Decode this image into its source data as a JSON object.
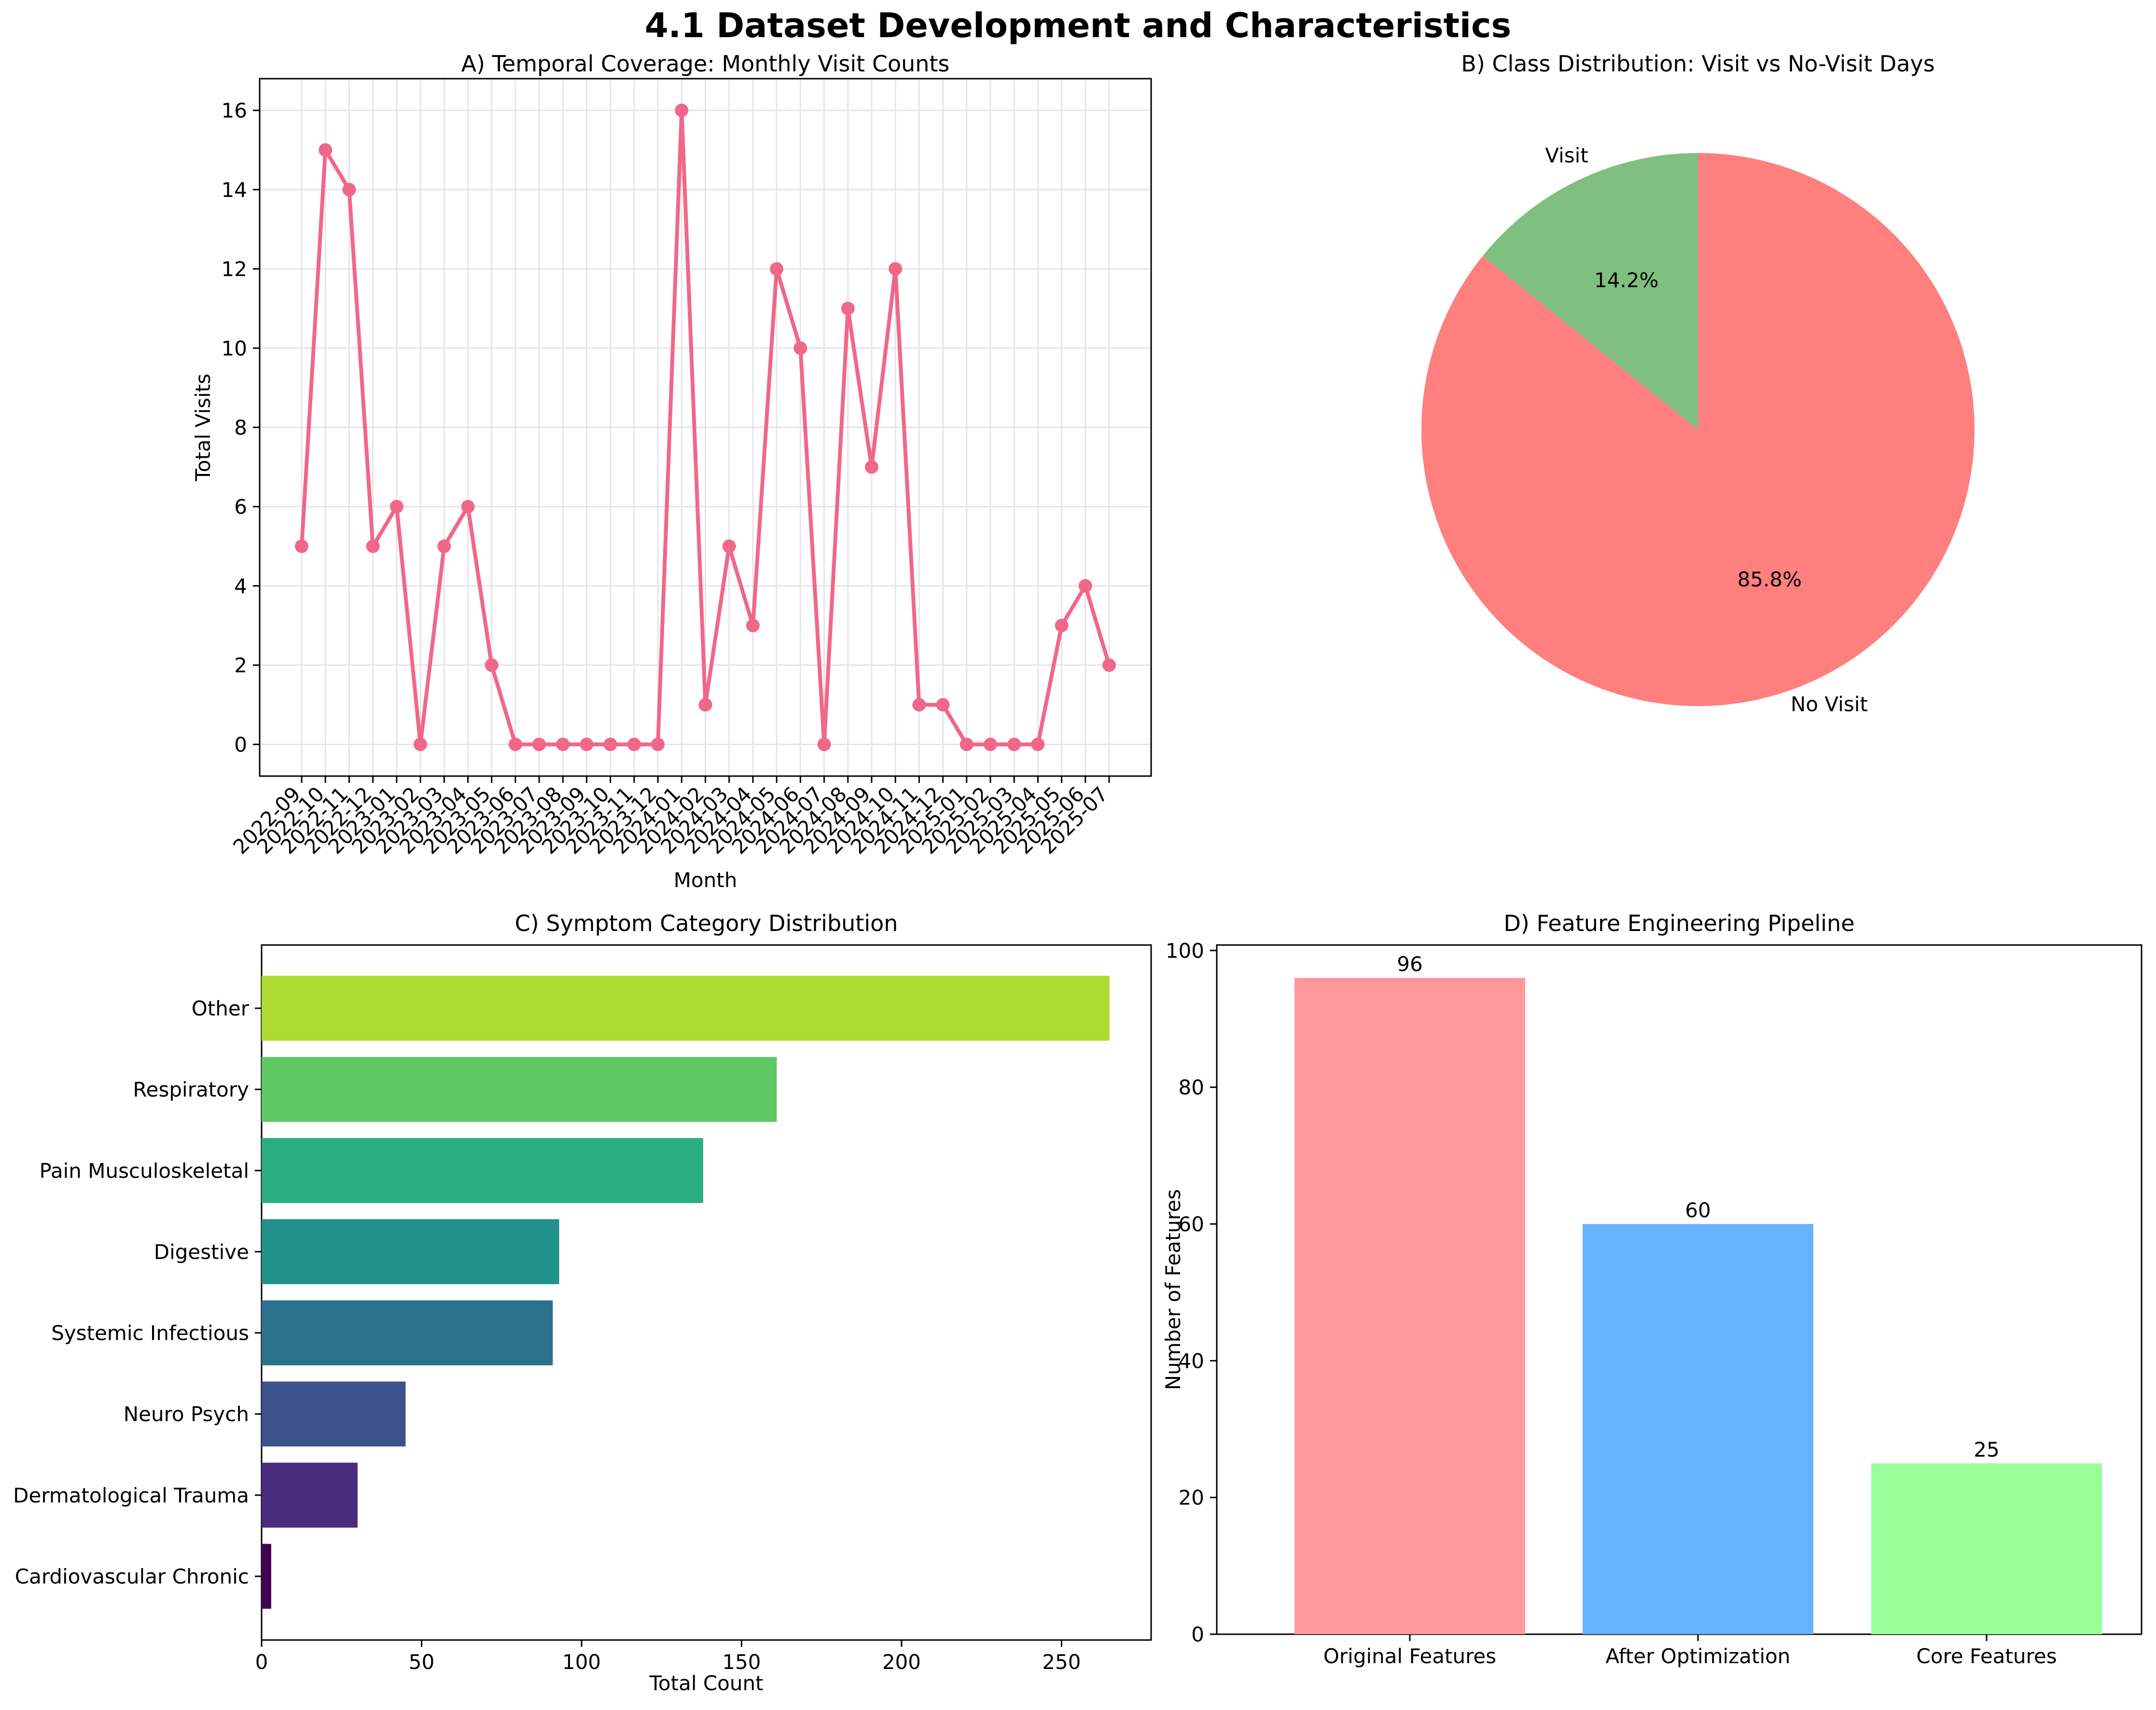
{
  "figure": {
    "suptitle": "4.1 Dataset Development and Characteristics"
  },
  "chart_data": [
    {
      "id": "A",
      "type": "line",
      "title": "A) Temporal Coverage: Monthly Visit Counts",
      "xlabel": "Month",
      "ylabel": "Total Visits",
      "categories": [
        "2022-09",
        "2022-10",
        "2022-11",
        "2022-12",
        "2023-01",
        "2023-02",
        "2023-03",
        "2023-04",
        "2023-05",
        "2023-06",
        "2023-07",
        "2023-08",
        "2023-09",
        "2023-10",
        "2023-11",
        "2023-12",
        "2024-01",
        "2024-02",
        "2024-03",
        "2024-04",
        "2024-05",
        "2024-06",
        "2024-07",
        "2024-08",
        "2024-09",
        "2024-10",
        "2024-11",
        "2024-12",
        "2025-01",
        "2025-02",
        "2025-03",
        "2025-04",
        "2025-05",
        "2025-06",
        "2025-07"
      ],
      "values": [
        5,
        15,
        14,
        5,
        6,
        0,
        5,
        6,
        2,
        0,
        0,
        0,
        0,
        0,
        0,
        0,
        16,
        1,
        5,
        3,
        12,
        10,
        0,
        11,
        7,
        12,
        1,
        1,
        0,
        0,
        0,
        0,
        3,
        4,
        2
      ],
      "ylim": [
        -0.8,
        16.8
      ],
      "yticks": [
        0,
        2,
        4,
        6,
        8,
        10,
        12,
        14,
        16
      ],
      "grid": true,
      "color": "#f0678a"
    },
    {
      "id": "B",
      "type": "pie",
      "title": "B) Class Distribution: Visit vs No-Visit Days",
      "slices": [
        {
          "label": "Visit",
          "value": 14.2,
          "pct_label": "14.2%",
          "color": "#7fbf7f"
        },
        {
          "label": "No Visit",
          "value": 85.8,
          "pct_label": "85.8%",
          "color": "#ff7f7f"
        }
      ]
    },
    {
      "id": "C",
      "type": "bar",
      "orientation": "horizontal",
      "title": "C) Symptom Category Distribution",
      "xlabel": "Total Count",
      "ylabel": "",
      "categories": [
        "Other",
        "Respiratory",
        "Pain Musculoskeletal",
        "Digestive",
        "Systemic Infectious",
        "Neuro Psych",
        "Dermatological Trauma",
        "Cardiovascular Chronic"
      ],
      "values": [
        265,
        161,
        138,
        93,
        91,
        45,
        30,
        3
      ],
      "colors": [
        "#addc30",
        "#5ec962",
        "#28ae80",
        "#21918c",
        "#2c728e",
        "#3b528b",
        "#472d7b",
        "#440154"
      ],
      "xlim": [
        0,
        278
      ],
      "xticks": [
        0,
        50,
        100,
        150,
        200,
        250
      ]
    },
    {
      "id": "D",
      "type": "bar",
      "title": "D) Feature Engineering Pipeline",
      "xlabel": "",
      "ylabel": "Number of Features",
      "categories": [
        "Original Features",
        "After Optimization",
        "Core Features"
      ],
      "values": [
        96,
        60,
        25
      ],
      "colors": [
        "#ff9999",
        "#66b3ff",
        "#99ff99"
      ],
      "ylim": [
        0,
        100.8
      ],
      "yticks": [
        0,
        20,
        40,
        60,
        80,
        100
      ]
    }
  ]
}
